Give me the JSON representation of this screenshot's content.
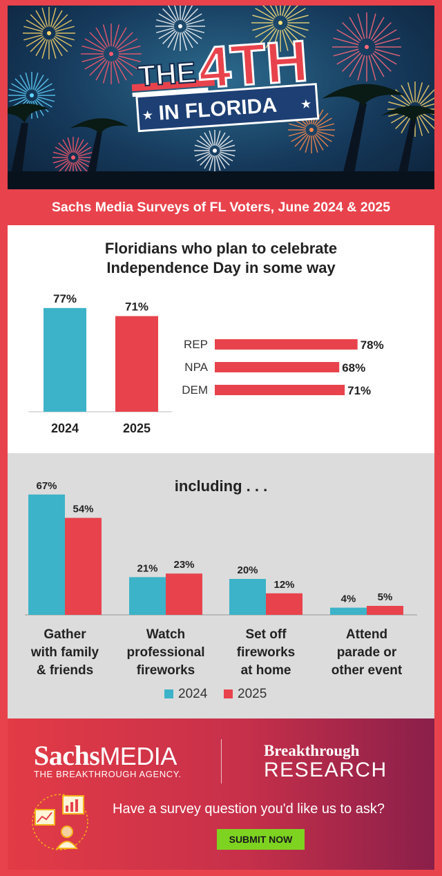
{
  "hero": {
    "line1": "THE",
    "line2": "4TH",
    "line3": "IN FLORIDA"
  },
  "subtitle": "Sachs Media Surveys of FL Voters, June 2024 & 2025",
  "colors": {
    "y2024": "#3cb3c8",
    "y2025": "#e8434c",
    "accent": "#e8434c"
  },
  "chart_data": [
    {
      "type": "bar",
      "title": "Floridians who plan to celebrate Independence Day in some way",
      "categories": [
        "2024",
        "2025"
      ],
      "values": [
        77,
        71
      ],
      "value_labels": [
        "77%",
        "71%"
      ]
    },
    {
      "type": "bar",
      "orientation": "horizontal",
      "categories": [
        "REP",
        "NPA",
        "DEM"
      ],
      "values": [
        78,
        68,
        71
      ],
      "value_labels": [
        "78%",
        "68%",
        "71%"
      ]
    },
    {
      "type": "bar",
      "title": "including . . .",
      "categories": [
        [
          "Gather",
          "with family",
          "& friends"
        ],
        [
          "Watch",
          "professional",
          "fireworks"
        ],
        [
          "Set off",
          "fireworks",
          "at home"
        ],
        [
          "Attend",
          "parade or",
          "other event"
        ]
      ],
      "series": [
        {
          "name": "2024",
          "values": [
            67,
            21,
            20,
            4
          ],
          "labels": [
            "67%",
            "21%",
            "20%",
            "4%"
          ]
        },
        {
          "name": "2025",
          "values": [
            54,
            23,
            12,
            5
          ],
          "labels": [
            "54%",
            "23%",
            "12%",
            "5%"
          ]
        }
      ],
      "legend": "bottom-center"
    }
  ],
  "footer": {
    "brand_bold": "Sachs",
    "brand_light": "MEDIA",
    "brand_tagline": "THE BREAKTHROUGH AGENCY.",
    "partner_line1": "Breakthrough",
    "partner_line2": "RESEARCH",
    "prompt": "Have a survey question you'd like us to ask?",
    "button_label": "SUBMIT NOW",
    "icon": "survey-research-icon"
  }
}
